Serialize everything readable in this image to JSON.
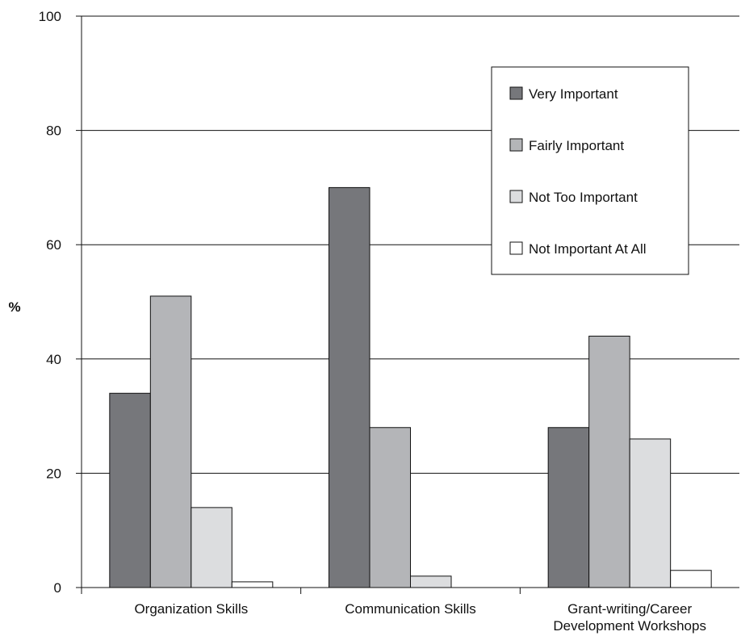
{
  "chart_data": {
    "type": "bar",
    "ylabel": "%",
    "ylim": [
      0,
      100
    ],
    "yticks": [
      0,
      20,
      40,
      60,
      80,
      100
    ],
    "grid": true,
    "legend_position": "top-right",
    "categories": [
      [
        "Organization Skills"
      ],
      [
        "Communication Skills"
      ],
      [
        "Grant-writing/Career",
        "Development Workshops"
      ]
    ],
    "series": [
      {
        "name": "Very Important",
        "color": "#76777b",
        "values": [
          34,
          70,
          28
        ]
      },
      {
        "name": "Fairly Important",
        "color": "#b4b5b8",
        "values": [
          51,
          28,
          44
        ]
      },
      {
        "name": "Not Too Important",
        "color": "#dcdddf",
        "values": [
          14,
          2,
          26
        ]
      },
      {
        "name": "Not Important At All",
        "color": "#ffffff",
        "values": [
          1,
          0,
          3
        ]
      }
    ]
  }
}
